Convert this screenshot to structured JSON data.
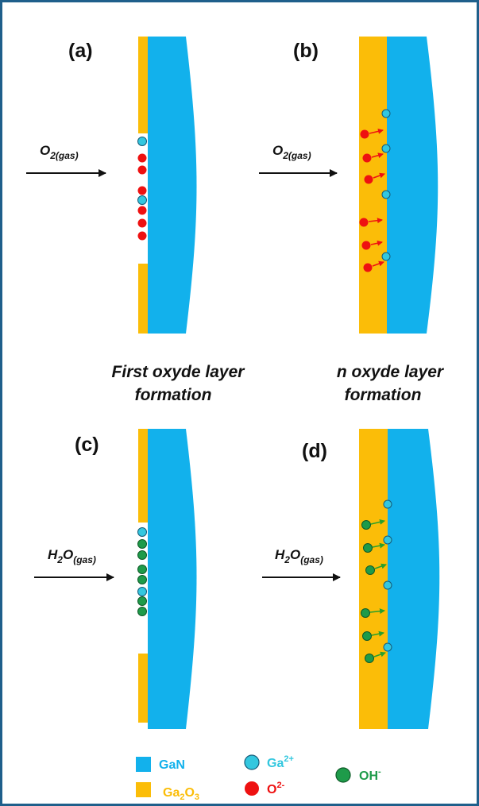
{
  "panels": [
    {
      "label": "(a)",
      "gas": {
        "base": "O",
        "sub": "2(gas)"
      }
    },
    {
      "label": "(b)",
      "gas": {
        "base": "O",
        "sub": "2(gas)"
      }
    },
    {
      "label": "(c)",
      "gas": {
        "base": "H",
        "sub1": "2",
        "mid": "O",
        "sub2": "(gas)"
      }
    },
    {
      "label": "(d)",
      "gas": {
        "base": "H",
        "sub1": "2",
        "mid": "O",
        "sub2": "(gas)"
      }
    }
  ],
  "captions": {
    "first": [
      "First oxyde layer",
      "formation"
    ],
    "n": [
      "n oxyde layer",
      "formation"
    ]
  },
  "legend": {
    "gan": "GaN",
    "ga2o3": {
      "base": "Ga",
      "s1": "2",
      "mid": "O",
      "s2": "3"
    },
    "ga2plus": {
      "base": "Ga",
      "sup": "2+"
    },
    "o2minus": {
      "base": "O",
      "sup": "2-"
    },
    "ohminus": {
      "base": "OH",
      "sup": "-"
    }
  },
  "colors": {
    "gan": "#12b1ec",
    "ga2o3": "#fbbd08",
    "ga_ion": "#33c7df",
    "oxygen": "#ee1111",
    "hydroxide": "#1e9b4a",
    "arrow_o": "#ee1111",
    "arrow_oh": "#2aa02a",
    "frame": "#1f5f8b",
    "text": "#111111"
  }
}
